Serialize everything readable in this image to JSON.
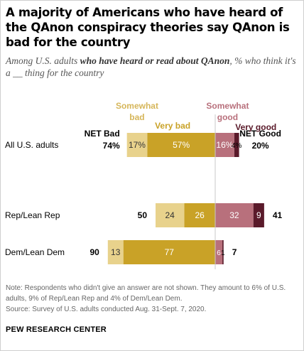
{
  "title": "A majority of Americans who have heard of the QAnon conspiracy theories say QAnon is bad for the country",
  "subtitle": {
    "pre": "Among U.S. adults ",
    "bold": "who have heard or read about QAnon",
    "post": ", % who think it's a __ thing for the country"
  },
  "note": "Note: Respondents who didn't give an answer are not shown. They amount to 6% of U.S. adults, 9% of Rep/Lean Rep and 4% of Dem/Lean Dem.",
  "source": "Source: Survey of U.S. adults conducted Aug. 31-Sept. 7, 2020.",
  "brand": "PEW RESEARCH CENTER",
  "chart_data": {
    "type": "bar",
    "orientation": "horizontal-diverging-stacked",
    "categories": [
      "All U.S. adults",
      "Rep/Lean Rep",
      "Dem/Lean Dem"
    ],
    "series": [
      {
        "name": "Very bad",
        "color": "#c9a227",
        "values": [
          57,
          26,
          77
        ],
        "labels": [
          "57%",
          "26",
          "77"
        ]
      },
      {
        "name": "Somewhat bad",
        "color": "#e8d28c",
        "values": [
          17,
          24,
          13
        ],
        "labels": [
          "17%",
          "24",
          "13"
        ]
      },
      {
        "name": "Somewhat good",
        "color": "#b8707c",
        "values": [
          16,
          32,
          6
        ],
        "labels": [
          "16%",
          "32",
          "6"
        ]
      },
      {
        "name": "Very good",
        "color": "#5a1a2a",
        "values": [
          4,
          9,
          1
        ],
        "labels": [
          "4%",
          "9",
          "1"
        ]
      }
    ],
    "legend_labels": [
      {
        "lines": [
          "Very bad"
        ],
        "color": "#c9a227"
      },
      {
        "lines": [
          "Somewhat",
          "bad"
        ],
        "color": "#d6b65a"
      },
      {
        "lines": [
          "Somewhat",
          "good"
        ],
        "color": "#b8707c"
      },
      {
        "lines": [
          "Very good"
        ],
        "color": "#5a1a2a"
      }
    ],
    "net_bad": {
      "header": [
        "NET Bad",
        "74%"
      ],
      "values": [
        "50",
        "90"
      ]
    },
    "net_good": {
      "header": [
        "NET Good",
        "20%"
      ],
      "values": [
        "41",
        "7"
      ]
    }
  }
}
